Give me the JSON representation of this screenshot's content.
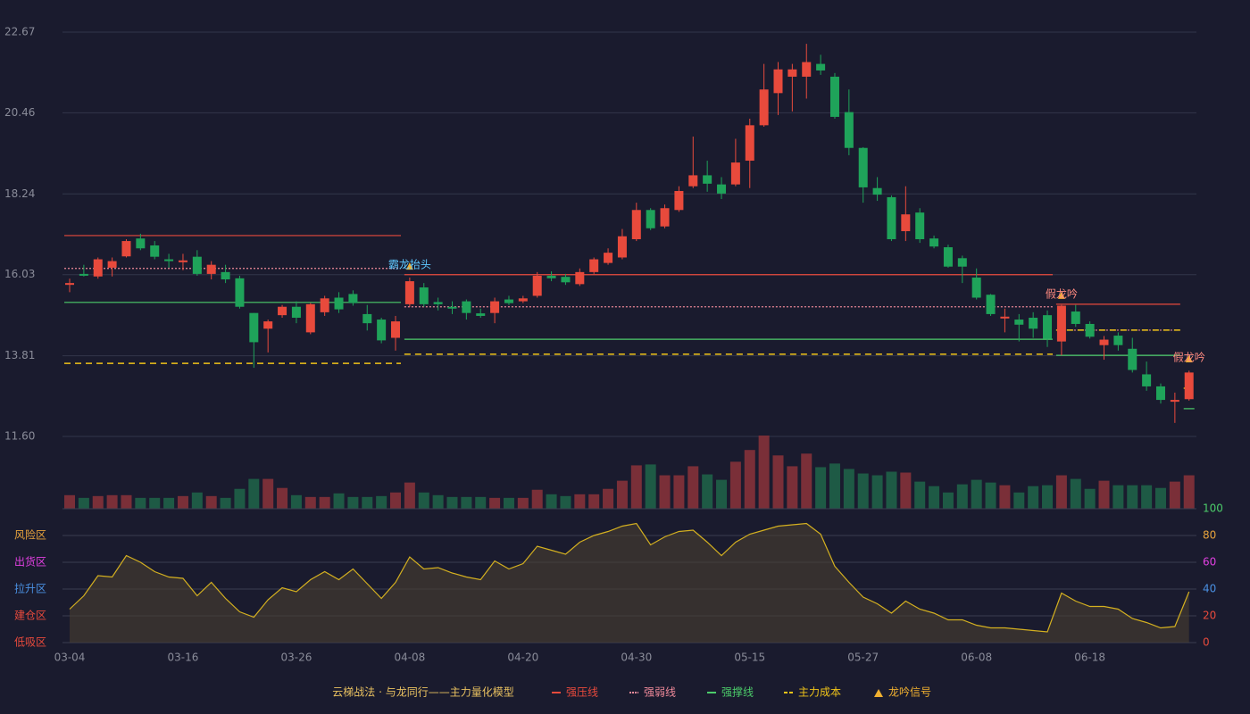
{
  "chart_data": [
    {
      "type": "candlestick",
      "ylim": [
        {
          "value": 11.6,
          "label": "11.60"
        },
        22.67
      ],
      "yticks": [
        {
          "value": 11.6,
          "label": "11.60"
        },
        13.81,
        16.03,
        18.24,
        20.46,
        22.67
      ],
      "grid": true,
      "up_color": "#e84a3c",
      "down_color": "#1fa35a",
      "open": [
        15.75,
        16.05,
        15.98,
        16.22,
        16.53,
        17.02,
        16.83,
        16.45,
        16.37,
        16.52,
        16.05,
        16.1,
        15.93,
        14.98,
        14.55,
        14.92,
        15.15,
        14.45,
        15.0,
        15.4,
        15.5,
        14.95,
        14.8,
        14.3,
        15.22,
        15.68,
        15.28,
        15.15,
        15.3,
        14.97,
        14.98,
        15.35,
        15.3,
        15.45,
        16.0,
        15.97,
        15.77,
        16.1,
        16.35,
        16.5,
        17.0,
        17.8,
        17.35,
        17.8,
        18.45,
        18.75,
        18.5,
        18.5,
        19.15,
        20.12,
        21.0,
        21.45,
        21.45,
        21.8,
        21.45,
        20.48,
        19.5,
        18.4,
        18.15,
        17.22,
        17.73,
        17.02,
        16.78,
        16.48,
        15.95,
        15.48,
        14.83,
        14.8,
        14.85,
        14.92,
        14.2,
        15.02,
        14.68,
        14.1,
        14.36,
        14.0,
        13.3,
        12.97,
        12.55,
        12.62
      ],
      "high": [
        15.92,
        16.3,
        16.5,
        16.5,
        17.0,
        17.15,
        16.95,
        16.6,
        16.6,
        16.7,
        16.4,
        16.3,
        16.0,
        14.98,
        14.8,
        15.2,
        15.3,
        15.25,
        15.45,
        15.55,
        15.6,
        15.2,
        14.85,
        14.9,
        15.95,
        15.8,
        15.4,
        15.3,
        15.35,
        15.1,
        15.4,
        15.45,
        15.45,
        16.1,
        16.12,
        16.05,
        16.2,
        16.5,
        16.75,
        17.28,
        18.0,
        17.85,
        17.95,
        18.45,
        19.81,
        19.15,
        18.7,
        19.75,
        20.3,
        21.8,
        21.85,
        21.8,
        22.35,
        22.05,
        21.55,
        21.1,
        19.52,
        18.7,
        18.2,
        18.45,
        17.85,
        17.1,
        16.85,
        16.55,
        16.2,
        15.5,
        15.1,
        14.95,
        15.0,
        15.05,
        15.2,
        15.2,
        14.75,
        14.35,
        14.45,
        14.3,
        13.65,
        13.05,
        12.8,
        13.4
      ],
      "low": [
        15.55,
        15.98,
        15.92,
        15.98,
        16.5,
        16.7,
        16.45,
        16.22,
        16.15,
        16.0,
        15.9,
        15.8,
        15.1,
        13.48,
        13.9,
        14.85,
        14.7,
        14.4,
        14.9,
        14.98,
        15.18,
        14.5,
        14.15,
        13.95,
        15.15,
        15.15,
        15.05,
        14.95,
        14.8,
        14.85,
        14.7,
        15.2,
        15.25,
        15.4,
        15.85,
        15.75,
        15.72,
        16.05,
        16.3,
        16.45,
        16.95,
        17.25,
        17.3,
        17.75,
        18.4,
        18.3,
        18.1,
        18.45,
        18.4,
        20.08,
        20.4,
        20.5,
        20.85,
        21.5,
        20.3,
        19.3,
        18.0,
        18.05,
        16.95,
        16.95,
        16.9,
        16.75,
        16.22,
        15.8,
        15.35,
        14.9,
        14.45,
        14.2,
        14.3,
        14.05,
        13.82,
        14.6,
        14.28,
        13.7,
        13.95,
        13.35,
        12.85,
        12.5,
        11.97,
        12.58
      ],
      "close": [
        15.8,
        16.0,
        16.45,
        16.4,
        16.95,
        16.75,
        16.52,
        16.4,
        16.42,
        16.05,
        16.3,
        15.9,
        15.15,
        14.18,
        14.75,
        15.15,
        14.85,
        15.22,
        15.38,
        15.08,
        15.25,
        14.7,
        14.23,
        14.75,
        15.85,
        15.22,
        15.22,
        15.1,
        14.98,
        14.9,
        15.3,
        15.25,
        15.38,
        16.0,
        15.93,
        15.82,
        16.1,
        16.45,
        16.63,
        17.08,
        17.8,
        17.3,
        17.85,
        18.32,
        18.75,
        18.52,
        18.25,
        19.1,
        20.12,
        21.1,
        21.65,
        21.65,
        21.85,
        21.62,
        20.35,
        19.5,
        18.42,
        18.22,
        17.0,
        17.68,
        17.0,
        16.8,
        16.25,
        16.25,
        15.4,
        14.95,
        14.88,
        14.66,
        14.55,
        14.27,
        15.18,
        14.68,
        14.33,
        14.25,
        14.1,
        13.42,
        12.97,
        12.6,
        12.6,
        13.35
      ],
      "levels": [
        {
          "name": "强压线",
          "color": "#e84a3c",
          "style": "solid",
          "segments": [
            {
              "start": 0,
              "end": 23,
              "value": 17.1
            },
            {
              "start": 24,
              "end": 69,
              "value": 16.03
            },
            {
              "start": 70,
              "end": 78,
              "value": 15.22
            }
          ]
        },
        {
          "name": "强弱线",
          "color": "#f08a9a",
          "style": "dotted",
          "segments": [
            {
              "start": 0,
              "end": 23,
              "value": 16.2
            },
            {
              "start": 24,
              "end": 69,
              "value": 15.15
            },
            {
              "start": 70,
              "end": 78,
              "value": 14.51
            }
          ]
        },
        {
          "name": "强撑线",
          "color": "#4ccc6a",
          "style": "solid",
          "segments": [
            {
              "start": 0,
              "end": 23,
              "value": 15.27
            },
            {
              "start": 24,
              "end": 69,
              "value": 14.26
            },
            {
              "start": 70,
              "end": 78,
              "value": 13.82
            },
            {
              "start": 79,
              "end": 79,
              "value": 12.36
            }
          ]
        },
        {
          "name": "主力成本",
          "color": "#f0c419",
          "style": "dashed",
          "segments": [
            {
              "start": 0,
              "end": 23,
              "value": 13.6
            },
            {
              "start": 24,
              "end": 69,
              "value": 13.85
            },
            {
              "start": 70,
              "end": 78,
              "value": 14.51
            },
            {
              "start": 79,
              "end": 79,
              "value": 12.92
            }
          ]
        }
      ],
      "signal_name": "龙吟信号",
      "signal_color": "#f0b030",
      "signals": [
        {
          "label": "霸龙抬头",
          "index": 24,
          "value": 16.29,
          "color": "#5ec8ff"
        },
        {
          "label": "假龙吟",
          "index": 70,
          "value": 15.49,
          "color": "#ff8a80"
        },
        {
          "label": "假龙吟",
          "index": 79,
          "value": 13.75,
          "color": "#ff8a80"
        }
      ]
    },
    {
      "type": "bar",
      "up_color": "#7a2f38",
      "down_color": "#1e5a45",
      "values": [
        15,
        12,
        14,
        15,
        15,
        12,
        12,
        12,
        14,
        18,
        14,
        12,
        22,
        33,
        33,
        23,
        15,
        13,
        13,
        17,
        13,
        13,
        14,
        18,
        29,
        18,
        15,
        13,
        13,
        13,
        12,
        12,
        12,
        21,
        16,
        14,
        16,
        16,
        22,
        31,
        48,
        49,
        37,
        37,
        47,
        38,
        32,
        52,
        65,
        81,
        59,
        47,
        61,
        46,
        50,
        44,
        39,
        37,
        41,
        40,
        30,
        25,
        18,
        27,
        32,
        29,
        26,
        18,
        25,
        26,
        37,
        33,
        22,
        31,
        26,
        26,
        26,
        23,
        30,
        37
      ]
    },
    {
      "type": "area",
      "color": "#d4b020",
      "ylim": [
        0,
        100
      ],
      "yticks": [
        0,
        20,
        40,
        60,
        80,
        100
      ],
      "tick_colors": [
        "#e84a3c",
        "#e84a3c",
        "#4a90e2",
        "#e040e0",
        "#e8a33c",
        "#4ccc6a"
      ],
      "zones": [
        {
          "label": "风险区",
          "value": 80,
          "color": "#e8a33c"
        },
        {
          "label": "出货区",
          "value": 60,
          "color": "#e040e0"
        },
        {
          "label": "拉升区",
          "value": 40,
          "color": "#4a90e2"
        },
        {
          "label": "建仓区",
          "value": 20,
          "color": "#e84a3c"
        },
        {
          "label": "低吸区",
          "value": 0,
          "color": "#e84a3c"
        }
      ],
      "values": [
        25,
        35,
        50,
        49,
        65,
        60,
        53,
        49,
        48,
        35,
        45,
        33,
        23,
        19,
        32,
        41,
        38,
        47,
        53,
        47,
        55,
        44,
        33,
        45,
        64,
        55,
        56,
        52,
        49,
        47,
        61,
        55,
        59,
        72,
        69,
        66,
        75,
        80,
        83,
        87,
        89,
        73,
        79,
        83,
        84,
        75,
        65,
        75,
        81,
        84,
        87,
        88,
        89,
        81,
        57,
        45,
        34,
        29,
        22,
        31,
        25,
        22,
        17,
        17,
        13,
        11,
        11,
        10,
        9,
        8,
        37,
        31,
        27,
        27,
        25,
        18,
        15,
        11,
        12,
        38
      ],
      "categories": [
        "03-04",
        null,
        null,
        null,
        null,
        null,
        null,
        null,
        "03-16",
        null,
        null,
        null,
        null,
        null,
        null,
        null,
        "03-26",
        null,
        null,
        null,
        null,
        null,
        null,
        null,
        "04-08",
        null,
        null,
        null,
        null,
        null,
        null,
        null,
        "04-20",
        null,
        null,
        null,
        null,
        null,
        null,
        null,
        "04-30",
        null,
        null,
        null,
        null,
        null,
        null,
        null,
        "05-15",
        null,
        null,
        null,
        null,
        null,
        null,
        null,
        "05-27",
        null,
        null,
        null,
        null,
        null,
        null,
        null,
        "06-08",
        null,
        null,
        null,
        null,
        null,
        null,
        null,
        "06-18",
        null,
        null,
        null,
        null,
        null,
        null,
        null
      ],
      "legend_title": "云梯战法 · 与龙同行——主力量化模型"
    }
  ]
}
